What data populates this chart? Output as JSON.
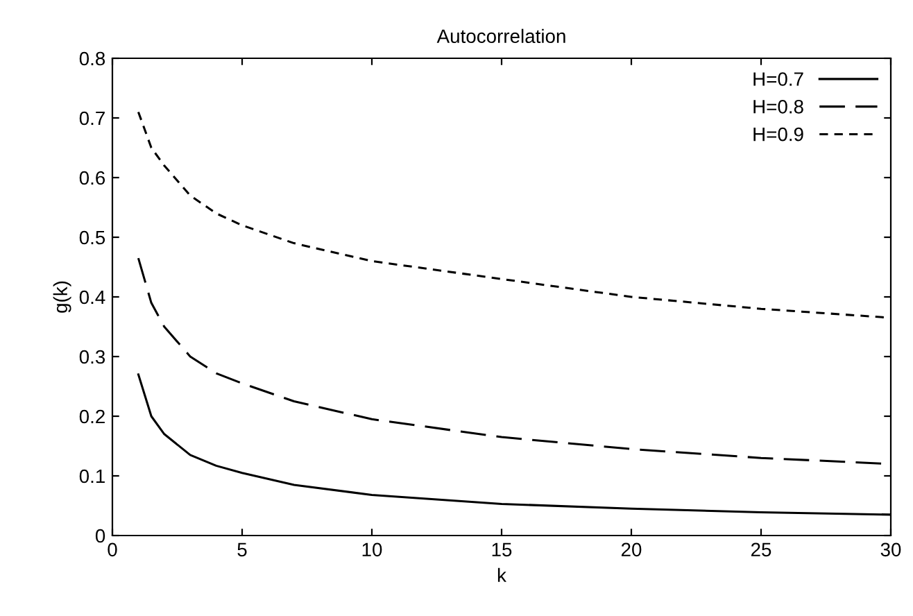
{
  "chart_data": {
    "type": "line",
    "title": "Autocorrelation",
    "xlabel": "k",
    "ylabel": "g(k)",
    "xlim": [
      0,
      30
    ],
    "xticks": [
      0,
      5,
      10,
      15,
      20,
      25,
      30
    ],
    "ylim": [
      0,
      0.8
    ],
    "yticks": [
      0,
      0.1,
      0.2,
      0.3,
      0.4,
      0.5,
      0.6,
      0.7,
      0.8
    ],
    "grid": false,
    "legend": "top right",
    "marker": "none",
    "series": [
      {
        "name": "H=0.7",
        "color": "#000000",
        "line_style": "solid",
        "x": [
          1,
          1.5,
          2,
          3,
          4,
          5,
          7,
          10,
          15,
          20,
          25,
          30
        ],
        "values": [
          0.27,
          0.2,
          0.17,
          0.135,
          0.117,
          0.105,
          0.085,
          0.068,
          0.053,
          0.045,
          0.039,
          0.035
        ]
      },
      {
        "name": "H=0.8",
        "color": "#000000",
        "line_style": "dashed",
        "x": [
          1,
          1.5,
          2,
          3,
          4,
          5,
          7,
          10,
          15,
          20,
          25,
          30
        ],
        "values": [
          0.465,
          0.39,
          0.35,
          0.3,
          0.272,
          0.255,
          0.225,
          0.195,
          0.165,
          0.145,
          0.13,
          0.12
        ]
      },
      {
        "name": "H=0.9",
        "color": "#000000",
        "line_style": "dashed",
        "x": [
          1,
          1.5,
          2,
          3,
          4,
          5,
          7,
          10,
          15,
          20,
          25,
          30
        ],
        "values": [
          0.71,
          0.65,
          0.62,
          0.57,
          0.54,
          0.52,
          0.49,
          0.46,
          0.43,
          0.4,
          0.38,
          0.365
        ]
      }
    ]
  }
}
